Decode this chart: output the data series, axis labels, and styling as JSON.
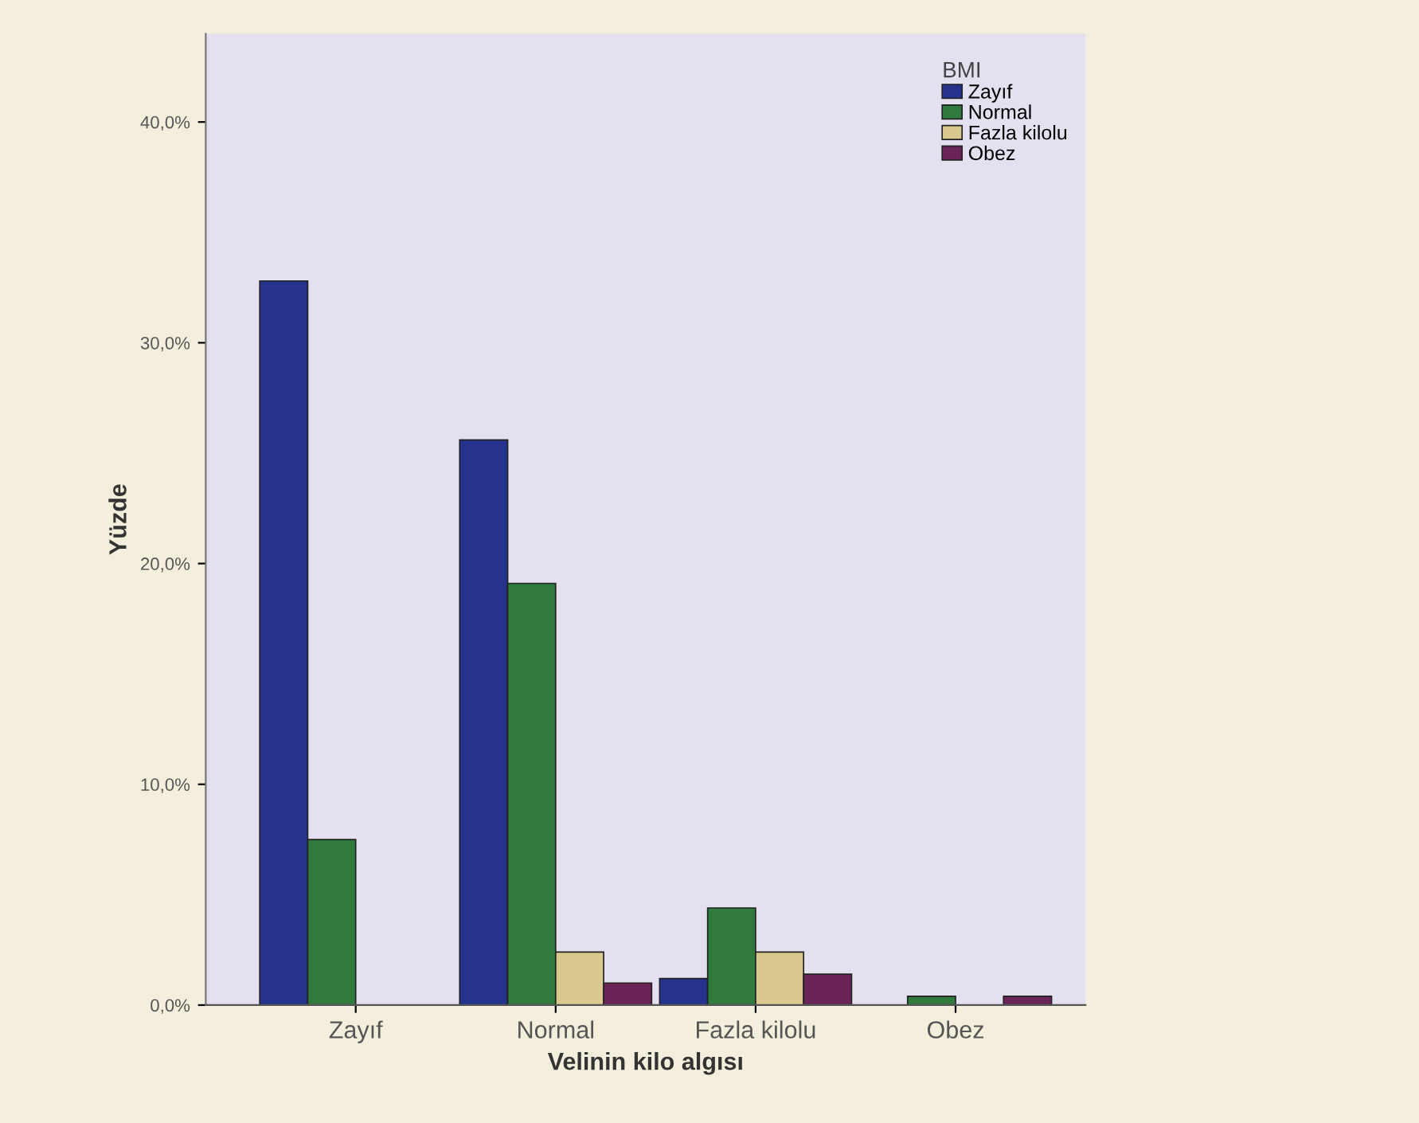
{
  "chart_data": {
    "type": "bar",
    "xlabel": "Velinin kilo algısı",
    "ylabel": "Yüzde",
    "legend_title": "BMI",
    "legend": "top right",
    "categories": [
      "Zayıf",
      "Normal",
      "Fazla kilolu",
      "Obez"
    ],
    "series": [
      {
        "name": "Zayıf",
        "color": "#25338f",
        "values": [
          32.8,
          25.6,
          1.2,
          null
        ]
      },
      {
        "name": "Normal",
        "color": "#2f7a3c",
        "values": [
          7.5,
          19.1,
          4.4,
          0.4
        ]
      },
      {
        "name": "Fazla kilolu",
        "color": "#d9c98f",
        "values": [
          null,
          2.4,
          2.4,
          null
        ]
      },
      {
        "name": "Obez",
        "color": "#6a2457",
        "values": [
          null,
          1.0,
          1.4,
          0.4
        ]
      }
    ],
    "ylim": [
      0,
      44
    ],
    "yticks": [
      {
        "value": 0,
        "label": "0,0%"
      },
      {
        "value": 10,
        "label": "10,0%"
      },
      {
        "value": 20,
        "label": "20,0%"
      },
      {
        "value": 30,
        "label": "30,0%"
      },
      {
        "value": 40,
        "label": "40,0%"
      }
    ],
    "grid": false
  }
}
